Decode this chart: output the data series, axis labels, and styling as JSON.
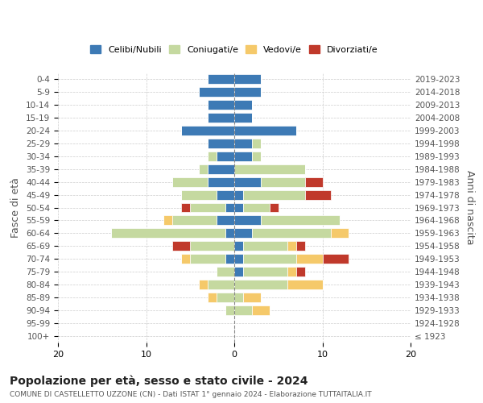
{
  "age_groups": [
    "100+",
    "95-99",
    "90-94",
    "85-89",
    "80-84",
    "75-79",
    "70-74",
    "65-69",
    "60-64",
    "55-59",
    "50-54",
    "45-49",
    "40-44",
    "35-39",
    "30-34",
    "25-29",
    "20-24",
    "15-19",
    "10-14",
    "5-9",
    "0-4"
  ],
  "birth_years": [
    "≤ 1923",
    "1924-1928",
    "1929-1933",
    "1934-1938",
    "1939-1943",
    "1944-1948",
    "1949-1953",
    "1954-1958",
    "1959-1963",
    "1964-1968",
    "1969-1973",
    "1974-1978",
    "1979-1983",
    "1984-1988",
    "1989-1993",
    "1994-1998",
    "1999-2003",
    "2004-2008",
    "2009-2013",
    "2014-2018",
    "2019-2023"
  ],
  "colors": {
    "celibi": "#3d7ab5",
    "coniugati": "#c5d9a0",
    "vedovi": "#f5c96a",
    "divorziati": "#c0392b"
  },
  "males": {
    "celibi": [
      0,
      0,
      0,
      0,
      0,
      0,
      1,
      0,
      1,
      2,
      1,
      2,
      3,
      3,
      2,
      3,
      6,
      3,
      3,
      4,
      3
    ],
    "coniugati": [
      0,
      0,
      1,
      2,
      3,
      2,
      4,
      5,
      13,
      5,
      4,
      4,
      4,
      1,
      1,
      0,
      0,
      0,
      0,
      0,
      0
    ],
    "vedovi": [
      0,
      0,
      0,
      1,
      1,
      0,
      1,
      0,
      0,
      1,
      0,
      0,
      0,
      0,
      0,
      0,
      0,
      0,
      0,
      0,
      0
    ],
    "divorziati": [
      0,
      0,
      0,
      0,
      0,
      0,
      0,
      2,
      0,
      0,
      1,
      0,
      0,
      0,
      0,
      0,
      0,
      0,
      0,
      0,
      0
    ]
  },
  "females": {
    "celibi": [
      0,
      0,
      0,
      0,
      0,
      1,
      1,
      1,
      2,
      3,
      1,
      1,
      3,
      0,
      2,
      2,
      7,
      2,
      2,
      3,
      3
    ],
    "coniugati": [
      0,
      0,
      2,
      1,
      6,
      5,
      6,
      5,
      9,
      9,
      3,
      7,
      5,
      8,
      1,
      1,
      0,
      0,
      0,
      0,
      0
    ],
    "vedovi": [
      0,
      0,
      2,
      2,
      4,
      1,
      3,
      1,
      2,
      0,
      0,
      0,
      0,
      0,
      0,
      0,
      0,
      0,
      0,
      0,
      0
    ],
    "divorziati": [
      0,
      0,
      0,
      0,
      0,
      1,
      3,
      1,
      0,
      0,
      1,
      3,
      2,
      0,
      0,
      0,
      0,
      0,
      0,
      0,
      0
    ]
  },
  "xlim": 20,
  "title": "Popolazione per età, sesso e stato civile - 2024",
  "subtitle": "COMUNE DI CASTELLETTO UZZONE (CN) - Dati ISTAT 1° gennaio 2024 - Elaborazione TUTTAITALIA.IT",
  "ylabel_left": "Fasce di età",
  "ylabel_right": "Anni di nascita",
  "legend_labels": [
    "Celibi/Nubili",
    "Coniugati/e",
    "Vedovi/e",
    "Divorziati/e"
  ],
  "background_color": "#ffffff",
  "grid_color": "#cccccc"
}
